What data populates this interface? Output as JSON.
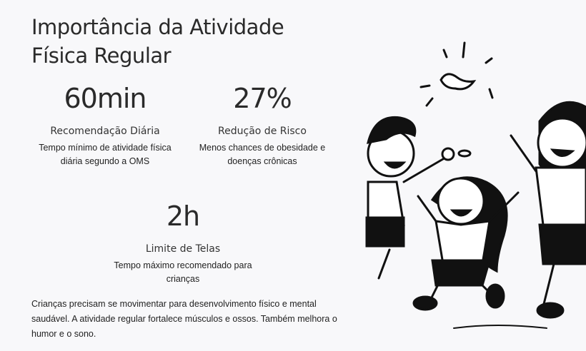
{
  "title": {
    "line1": "Importância da Atividade",
    "line2": "Física Regular"
  },
  "stats": [
    {
      "value": "60min",
      "label": "Recomendação Diária",
      "desc1": "Tempo mínimo de atividade física",
      "desc2": "diária segundo a OMS"
    },
    {
      "value": "27%",
      "label": "Redução de Risco",
      "desc1": "Menos chances de obesidade e",
      "desc2": "doenças crônicas"
    },
    {
      "value": "2h",
      "label": "Limite de Telas",
      "desc1": "Tempo máximo recomendado para",
      "desc2": "crianças"
    }
  ],
  "paragraph": "Crianças precisam se movimentar para desenvolvimento físico e mental saudável. A atividade regular fortalece músculos e ossos. Também melhora o humor e o sono."
}
